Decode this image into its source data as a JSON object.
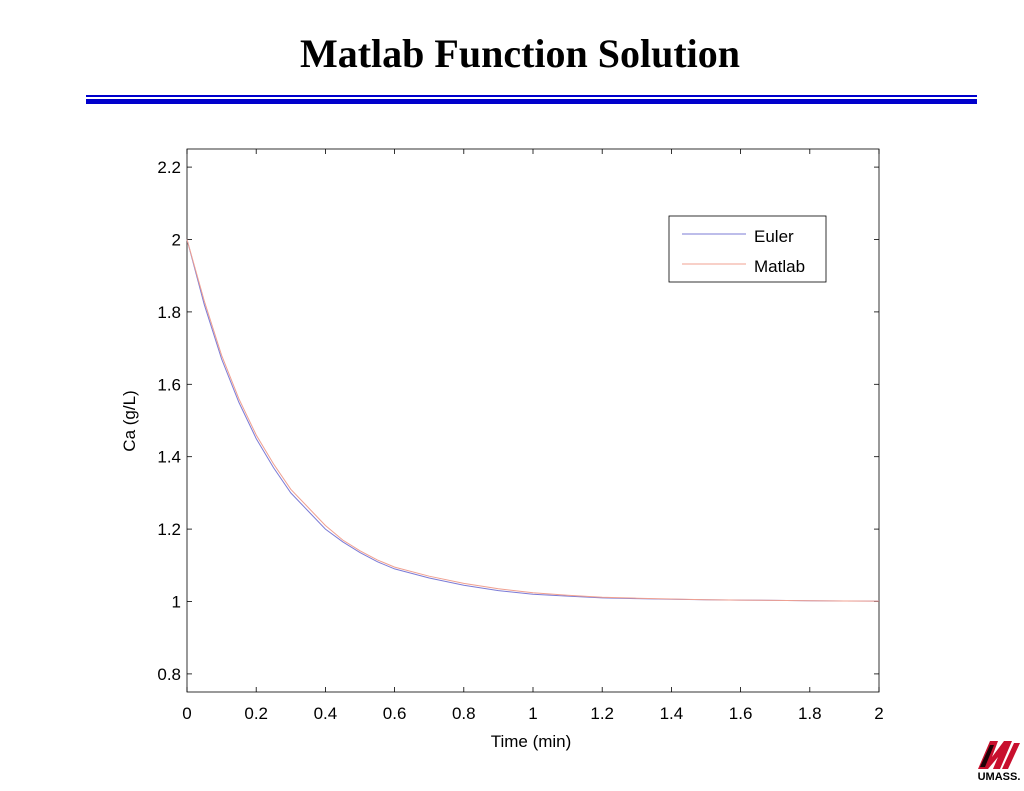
{
  "slide": {
    "title": "Matlab Function Solution"
  },
  "logo": {
    "text": "UMASS."
  },
  "colors": {
    "rule": "#0000cc",
    "logo": "#c8102e"
  },
  "chart_data": {
    "type": "line",
    "title": "",
    "xlabel": "Time (min)",
    "ylabel": "Ca (g/L)",
    "xlim": [
      0,
      2
    ],
    "ylim": [
      0.75,
      2.25
    ],
    "xticks": [
      0,
      0.2,
      0.4,
      0.6,
      0.8,
      1,
      1.2,
      1.4,
      1.6,
      1.8,
      2
    ],
    "xtick_labels": [
      "0",
      "0.2",
      "0.4",
      "0.6",
      "0.8",
      "1",
      "1.2",
      "1.4",
      "1.6",
      "1.8",
      "2"
    ],
    "yticks": [
      0.8,
      1,
      1.2,
      1.4,
      1.6,
      1.8,
      2,
      2.2
    ],
    "ytick_labels": [
      "0.8",
      "1",
      "1.2",
      "1.4",
      "1.6",
      "1.8",
      "2",
      "2.2"
    ],
    "grid": false,
    "legend": "top-right",
    "series": [
      {
        "name": "Euler",
        "color": "#7b7bd6",
        "x": [
          0,
          0.05,
          0.1,
          0.15,
          0.2,
          0.25,
          0.3,
          0.35,
          0.4,
          0.45,
          0.5,
          0.55,
          0.6,
          0.7,
          0.8,
          0.9,
          1,
          1.1,
          1.2,
          1.3,
          1.4,
          1.5,
          1.6,
          1.7,
          1.8,
          1.9,
          2
        ],
        "y": [
          2,
          1.82,
          1.67,
          1.55,
          1.45,
          1.37,
          1.3,
          1.25,
          1.2,
          1.165,
          1.135,
          1.11,
          1.09,
          1.065,
          1.045,
          1.03,
          1.02,
          1.015,
          1.01,
          1.008,
          1.006,
          1.005,
          1.004,
          1.003,
          1.002,
          1.0015,
          1.001
        ]
      },
      {
        "name": "Matlab",
        "color": "#f0a090",
        "x": [
          0,
          0.05,
          0.1,
          0.15,
          0.2,
          0.25,
          0.3,
          0.35,
          0.4,
          0.45,
          0.5,
          0.55,
          0.6,
          0.7,
          0.8,
          0.9,
          1,
          1.1,
          1.2,
          1.3,
          1.4,
          1.5,
          1.6,
          1.7,
          1.8,
          1.9,
          2
        ],
        "y": [
          2,
          1.83,
          1.68,
          1.56,
          1.46,
          1.38,
          1.31,
          1.26,
          1.21,
          1.17,
          1.14,
          1.115,
          1.095,
          1.07,
          1.05,
          1.035,
          1.024,
          1.017,
          1.012,
          1.009,
          1.007,
          1.005,
          1.004,
          1.003,
          1.002,
          1.0015,
          1.001
        ]
      }
    ]
  }
}
